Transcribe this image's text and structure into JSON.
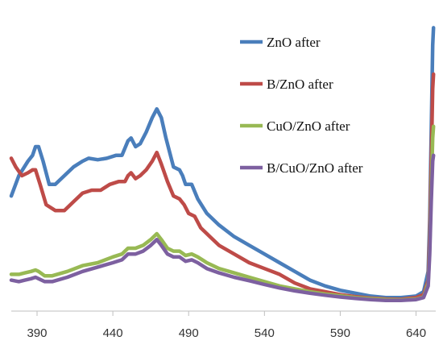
{
  "chart_data": {
    "type": "line",
    "title": "",
    "xlabel": "",
    "ylabel": "",
    "xlim": [
      373,
      653
    ],
    "ylim": [
      0,
      100
    ],
    "x_ticks": [
      390,
      440,
      490,
      540,
      590,
      640
    ],
    "grid": false,
    "legend_position": "top-right",
    "series": [
      {
        "name": "ZnO after",
        "color": "#4a7ebb",
        "points": [
          [
            373,
            38
          ],
          [
            378,
            45
          ],
          [
            384,
            50
          ],
          [
            387,
            52
          ],
          [
            389,
            55
          ],
          [
            391,
            55
          ],
          [
            394,
            50
          ],
          [
            398,
            42
          ],
          [
            402,
            42
          ],
          [
            408,
            45
          ],
          [
            414,
            48
          ],
          [
            420,
            50
          ],
          [
            424,
            51
          ],
          [
            430,
            50.5
          ],
          [
            436,
            51
          ],
          [
            442,
            52
          ],
          [
            446,
            52
          ],
          [
            450,
            57
          ],
          [
            452,
            58
          ],
          [
            455,
            55
          ],
          [
            458,
            56
          ],
          [
            462,
            60
          ],
          [
            466,
            65
          ],
          [
            469,
            68
          ],
          [
            472,
            65
          ],
          [
            475,
            58
          ],
          [
            480,
            48
          ],
          [
            484,
            47
          ],
          [
            486,
            45
          ],
          [
            488,
            42
          ],
          [
            490,
            42
          ],
          [
            492,
            42
          ],
          [
            496,
            37
          ],
          [
            502,
            32
          ],
          [
            510,
            28
          ],
          [
            520,
            24
          ],
          [
            530,
            21
          ],
          [
            540,
            18
          ],
          [
            550,
            15
          ],
          [
            560,
            12
          ],
          [
            570,
            9
          ],
          [
            580,
            7
          ],
          [
            590,
            5.5
          ],
          [
            600,
            4.5
          ],
          [
            610,
            3.5
          ],
          [
            620,
            3
          ],
          [
            630,
            3
          ],
          [
            640,
            3.5
          ],
          [
            645,
            5
          ],
          [
            648,
            12
          ],
          [
            649,
            30
          ],
          [
            650,
            60
          ],
          [
            651,
            90
          ],
          [
            651.5,
            96
          ]
        ]
      },
      {
        "name": "B/ZnO after",
        "color": "#be4b48",
        "points": [
          [
            373,
            51
          ],
          [
            376,
            48
          ],
          [
            380,
            45
          ],
          [
            384,
            46
          ],
          [
            387,
            47
          ],
          [
            389,
            47
          ],
          [
            392,
            42
          ],
          [
            396,
            35
          ],
          [
            402,
            33
          ],
          [
            408,
            33
          ],
          [
            414,
            36
          ],
          [
            420,
            39
          ],
          [
            426,
            40
          ],
          [
            432,
            40
          ],
          [
            438,
            42
          ],
          [
            444,
            43
          ],
          [
            448,
            43
          ],
          [
            450,
            45
          ],
          [
            452,
            46
          ],
          [
            455,
            44
          ],
          [
            458,
            45
          ],
          [
            462,
            47
          ],
          [
            466,
            50
          ],
          [
            469,
            53
          ],
          [
            472,
            49
          ],
          [
            476,
            43
          ],
          [
            480,
            38
          ],
          [
            484,
            37
          ],
          [
            487,
            35
          ],
          [
            490,
            32
          ],
          [
            494,
            31
          ],
          [
            498,
            27
          ],
          [
            504,
            24
          ],
          [
            510,
            21
          ],
          [
            520,
            18
          ],
          [
            530,
            15
          ],
          [
            540,
            13
          ],
          [
            550,
            11
          ],
          [
            560,
            8
          ],
          [
            570,
            6
          ],
          [
            580,
            5
          ],
          [
            590,
            4
          ],
          [
            600,
            3.3
          ],
          [
            610,
            2.8
          ],
          [
            620,
            2.5
          ],
          [
            630,
            2.4
          ],
          [
            640,
            3
          ],
          [
            645,
            4
          ],
          [
            648,
            9
          ],
          [
            649,
            25
          ],
          [
            650,
            50
          ],
          [
            651,
            75
          ],
          [
            651.5,
            80
          ]
        ]
      },
      {
        "name": "CuO/ZnO after",
        "color": "#98b954",
        "points": [
          [
            373,
            11
          ],
          [
            378,
            11
          ],
          [
            382,
            11.5
          ],
          [
            386,
            12
          ],
          [
            389,
            12.5
          ],
          [
            391,
            12
          ],
          [
            395,
            10.5
          ],
          [
            400,
            10.5
          ],
          [
            410,
            12
          ],
          [
            420,
            14
          ],
          [
            430,
            15
          ],
          [
            440,
            17
          ],
          [
            446,
            18
          ],
          [
            450,
            20
          ],
          [
            455,
            20
          ],
          [
            460,
            21
          ],
          [
            465,
            23
          ],
          [
            469,
            25
          ],
          [
            472,
            23
          ],
          [
            476,
            20
          ],
          [
            480,
            19
          ],
          [
            484,
            19
          ],
          [
            488,
            17.5
          ],
          [
            492,
            18
          ],
          [
            496,
            17
          ],
          [
            502,
            15
          ],
          [
            510,
            13
          ],
          [
            520,
            11.5
          ],
          [
            530,
            10
          ],
          [
            540,
            8.5
          ],
          [
            550,
            7
          ],
          [
            560,
            6
          ],
          [
            570,
            5
          ],
          [
            580,
            4.2
          ],
          [
            590,
            3.6
          ],
          [
            600,
            3
          ],
          [
            610,
            2.6
          ],
          [
            620,
            2.3
          ],
          [
            630,
            2.2
          ],
          [
            640,
            2.5
          ],
          [
            645,
            3.2
          ],
          [
            648,
            8
          ],
          [
            649,
            20
          ],
          [
            650,
            40
          ],
          [
            651,
            58
          ],
          [
            651.5,
            62
          ]
        ]
      },
      {
        "name": "B/CuO/ZnO after",
        "color": "#7d60a0",
        "points": [
          [
            373,
            9
          ],
          [
            378,
            8.5
          ],
          [
            382,
            9
          ],
          [
            386,
            9.5
          ],
          [
            389,
            10
          ],
          [
            391,
            9.5
          ],
          [
            395,
            8.5
          ],
          [
            400,
            8.5
          ],
          [
            410,
            10
          ],
          [
            420,
            12
          ],
          [
            430,
            13.5
          ],
          [
            440,
            15
          ],
          [
            446,
            16
          ],
          [
            450,
            18
          ],
          [
            455,
            18
          ],
          [
            460,
            19
          ],
          [
            465,
            21
          ],
          [
            469,
            23
          ],
          [
            472,
            21
          ],
          [
            476,
            18
          ],
          [
            480,
            17
          ],
          [
            484,
            17
          ],
          [
            488,
            15.5
          ],
          [
            492,
            16
          ],
          [
            496,
            15
          ],
          [
            502,
            13
          ],
          [
            510,
            11.5
          ],
          [
            520,
            10
          ],
          [
            530,
            8.8
          ],
          [
            540,
            7.5
          ],
          [
            550,
            6.3
          ],
          [
            560,
            5.3
          ],
          [
            570,
            4.5
          ],
          [
            580,
            3.8
          ],
          [
            590,
            3.2
          ],
          [
            600,
            2.7
          ],
          [
            610,
            2.3
          ],
          [
            620,
            2
          ],
          [
            630,
            2
          ],
          [
            640,
            2.3
          ],
          [
            645,
            3
          ],
          [
            648,
            7
          ],
          [
            649,
            18
          ],
          [
            650,
            36
          ],
          [
            651,
            50
          ],
          [
            651.5,
            52
          ]
        ]
      }
    ]
  }
}
